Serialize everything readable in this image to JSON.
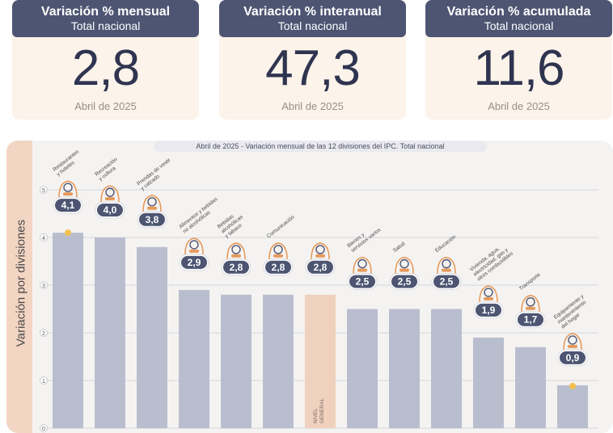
{
  "cards": [
    {
      "title": "Variación % mensual",
      "subtitle": "Total nacional",
      "value": "2,8",
      "date": "Abril de 2025"
    },
    {
      "title": "Variación % interanual",
      "subtitle": "Total nacional",
      "value": "47,3",
      "date": "Abril de 2025"
    },
    {
      "title": "Variación % acumulada",
      "subtitle": "Total nacional",
      "value": "11,6",
      "date": "Abril de 2025"
    }
  ],
  "chart_data": {
    "type": "bar",
    "title": "Abril de 2025 - Variación mensual de las 12 divisiones del IPC. Total nacional",
    "ylabel": "Variación por divisiones",
    "ylim": [
      0,
      5
    ],
    "yticks": [
      "0",
      "1",
      "2",
      "3",
      "4",
      "5"
    ],
    "categories": [
      "Restaurantes y hoteles",
      "Recreación y cultura",
      "Prendas de vestir y calzado",
      "Alimentos y bebidas no alcohólicas",
      "Bebidas alcohólicas y tabaco",
      "Comunicación",
      "Nivel general",
      "Bienes y servicios varios",
      "Salud",
      "Educación",
      "Vivienda, agua, electricidad, gas y otros combustibles",
      "Transporte",
      "Equipamiento y mantenimiento del hogar"
    ],
    "values": [
      4.1,
      4.0,
      3.8,
      2.9,
      2.8,
      2.8,
      2.8,
      2.5,
      2.5,
      2.5,
      1.9,
      1.7,
      0.9
    ],
    "value_labels": [
      "4,1",
      "4,0",
      "3,8",
      "2,9",
      "2,8",
      "2,8",
      "2,8",
      "2,5",
      "2,5",
      "2,5",
      "1,9",
      "1,7",
      "0,9"
    ],
    "category_labels": [
      [
        "Restaurantes",
        "y hoteles"
      ],
      [
        "Recreación",
        "y cultura"
      ],
      [
        "Prendas de vestir",
        "y calzado"
      ],
      [
        "Alimentos y bebidas",
        "no alcohólicas"
      ],
      [
        "Bebidas",
        "alcohólicas",
        "y tabaco"
      ],
      [
        "Comunicación"
      ],
      [
        "NIVEL",
        "GENERAL"
      ],
      [
        "Bienes y",
        "servicios varios"
      ],
      [
        "Salud"
      ],
      [
        "Educación"
      ],
      [
        "Vivienda, agua,",
        "electricidad, gas y",
        "otros combustibles"
      ],
      [
        "Transporte"
      ],
      [
        "Equipamiento y",
        "mantenimiento",
        "del hogar"
      ]
    ],
    "icons": [
      "restaurant-icon",
      "recreation-icon",
      "clothing-icon",
      "food-icon",
      "beverages-icon",
      "phone-icon",
      "basket-icon",
      "scissors-icon",
      "health-icon",
      "education-icon",
      "housing-icon",
      "transport-icon",
      "household-icon"
    ],
    "highlight_category": "Nivel general",
    "markers": [
      "Restaurantes y hoteles",
      "Equipamiento y mantenimiento del hogar"
    ],
    "colors": {
      "bar": "#b9becf",
      "highlight_bar": "#f0d1be",
      "badge": "#4d5572",
      "icon": "#e59a5c",
      "marker": "#f2c14e"
    },
    "grid": true
  }
}
